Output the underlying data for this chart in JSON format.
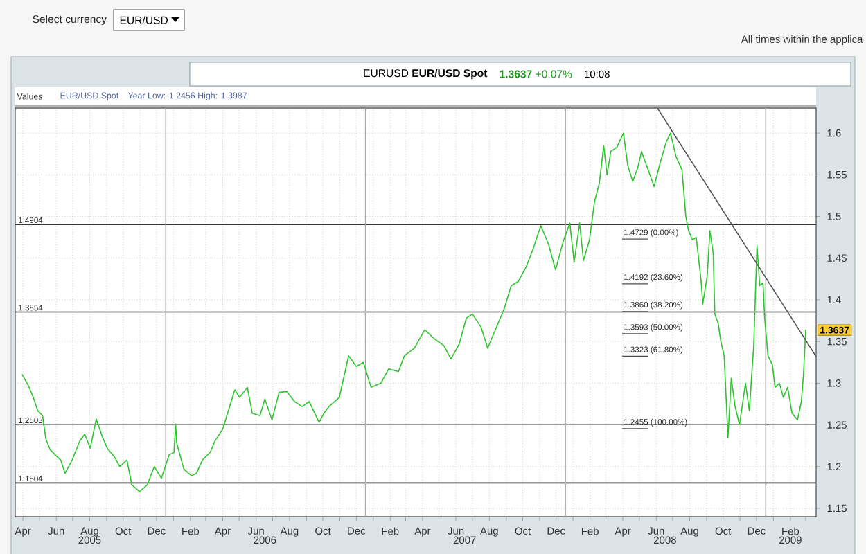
{
  "chart_data": {
    "type": "line",
    "title": "EURUSD **EUR/USD Spot**",
    "subtitle": "**1.3637** +0.07%",
    "annotations": [
      "Select currency",
      "EUR/USD",
      "All times within the applica",
      "10:08",
      "Values",
      "EUR/USD Spot",
      "Year Low: 1.2456 High: 1.3987",
      {
        "text": "1.3637",
        "y": 1.3637
      },
      "1.4729 (0.00%)",
      "1.4192 (23.60%)",
      "1.3860 (38.20%)",
      "1.3593 (50.00%)",
      "1.3323 (61.80%)",
      "1.2455 (100.00%)"
    ],
    "series": [
      {
        "color": "#2fc42f",
        "x": [
          "2005-04-14",
          "2005-04-25",
          "2005-05-04",
          "2005-05-12",
          "2005-05-21",
          "2005-05-27",
          "2005-06-04",
          "2005-06-13",
          "2005-06-23",
          "2005-07-01",
          "2005-07-14",
          "2005-07-28",
          "2005-08-06",
          "2005-08-16",
          "2005-08-27",
          "2005-09-07",
          "2005-09-16",
          "2005-09-30",
          "2005-10-09",
          "2005-10-22",
          "2005-10-31",
          "2005-11-14",
          "2005-11-28",
          "2005-12-11",
          "2005-12-24",
          "2006-01-07",
          "2006-01-16",
          "2006-01-19",
          "2006-01-21",
          "2006-02-03",
          "2006-02-17",
          "2006-02-26",
          "2006-03-09",
          "2006-03-23",
          "2006-04-01",
          "2006-04-15",
          "2006-04-24",
          "2006-05-07",
          "2006-05-16",
          "2006-05-30",
          "2006-06-08",
          "2006-06-22",
          "2006-07-01",
          "2006-07-14",
          "2006-07-27",
          "2006-08-10",
          "2006-08-24",
          "2006-09-07",
          "2006-09-20",
          "2006-10-08",
          "2006-10-17",
          "2006-10-26",
          "2006-11-14",
          "2006-12-01",
          "2006-12-15",
          "2006-12-28",
          "2007-01-11",
          "2007-01-29",
          "2007-02-12",
          "2007-03-02",
          "2007-03-13",
          "2007-03-31",
          "2007-04-19",
          "2007-05-07",
          "2007-05-24",
          "2007-06-06",
          "2007-06-21",
          "2007-07-04",
          "2007-07-15",
          "2007-07-31",
          "2007-08-12",
          "2007-08-28",
          "2007-09-11",
          "2007-09-24",
          "2007-10-07",
          "2007-10-21",
          "2007-11-03",
          "2007-11-17",
          "2007-12-01",
          "2007-12-14",
          "2007-12-28",
          "2008-01-09",
          "2008-01-17",
          "2008-01-27",
          "2008-02-03",
          "2008-02-14",
          "2008-02-23",
          "2008-03-03",
          "2008-03-11",
          "2008-03-17",
          "2008-03-24",
          "2008-04-04",
          "2008-04-16",
          "2008-04-24",
          "2008-05-03",
          "2008-05-12",
          "2008-05-19",
          "2008-05-30",
          "2008-06-11",
          "2008-06-22",
          "2008-07-03",
          "2008-07-11",
          "2008-07-21",
          "2008-08-01",
          "2008-08-08",
          "2008-08-13",
          "2008-08-20",
          "2008-08-27",
          "2008-09-05",
          "2008-09-08",
          "2008-09-16",
          "2008-09-21",
          "2008-09-27",
          "2008-09-30",
          "2008-10-06",
          "2008-10-11",
          "2008-10-17",
          "2008-10-24",
          "2008-10-30",
          "2008-11-06",
          "2008-11-14",
          "2008-11-25",
          "2008-12-02",
          "2008-12-10",
          "2008-12-16",
          "2008-12-21",
          "2008-12-27",
          "2008-12-30",
          "2009-01-05",
          "2009-01-13",
          "2009-01-18",
          "2009-01-26",
          "2009-02-02",
          "2009-02-10",
          "2009-02-18",
          "2009-02-28",
          "2009-03-07",
          "2009-03-11",
          "2009-03-15"
        ],
        "values": [
          1.31,
          1.297,
          1.283,
          1.267,
          1.261,
          1.233,
          1.22,
          1.214,
          1.208,
          1.192,
          1.208,
          1.231,
          1.239,
          1.222,
          1.257,
          1.236,
          1.222,
          1.211,
          1.2,
          1.208,
          1.178,
          1.17,
          1.178,
          1.2,
          1.186,
          1.214,
          1.217,
          1.251,
          1.228,
          1.197,
          1.189,
          1.192,
          1.208,
          1.217,
          1.231,
          1.245,
          1.264,
          1.292,
          1.283,
          1.295,
          1.264,
          1.261,
          1.281,
          1.256,
          1.289,
          1.29,
          1.278,
          1.272,
          1.278,
          1.253,
          1.264,
          1.272,
          1.283,
          1.333,
          1.32,
          1.325,
          1.295,
          1.3,
          1.317,
          1.314,
          1.333,
          1.342,
          1.364,
          1.353,
          1.345,
          1.329,
          1.347,
          1.378,
          1.383,
          1.367,
          1.342,
          1.367,
          1.389,
          1.417,
          1.422,
          1.439,
          1.461,
          1.489,
          1.467,
          1.436,
          1.47,
          1.492,
          1.445,
          1.492,
          1.447,
          1.472,
          1.517,
          1.54,
          1.585,
          1.55,
          1.578,
          1.583,
          1.6,
          1.561,
          1.542,
          1.558,
          1.578,
          1.558,
          1.536,
          1.564,
          1.589,
          1.6,
          1.572,
          1.556,
          1.5,
          1.483,
          1.472,
          1.475,
          1.422,
          1.395,
          1.428,
          1.483,
          1.456,
          1.383,
          1.372,
          1.35,
          1.333,
          1.235,
          1.306,
          1.272,
          1.25,
          1.3,
          1.267,
          1.345,
          1.465,
          1.417,
          1.42,
          1.378,
          1.333,
          1.322,
          1.295,
          1.3,
          1.283,
          1.295,
          1.264,
          1.256,
          1.278,
          1.311,
          1.364
        ]
      },
      {
        "type": "line",
        "color": "#555555",
        "x": [
          "2008-06-18",
          "2009-04-03"
        ],
        "values": [
          1.629,
          1.332
        ]
      }
    ],
    "xlim": [
      "2005-04-01",
      "2009-04-03"
    ],
    "xticks": [
      {
        "value": "2005-04-15",
        "label": "Apr"
      },
      {
        "value": "2005-05-15",
        "label": null
      },
      {
        "value": "2005-06-15",
        "label": "Jun"
      },
      {
        "value": "2005-07-15",
        "label": null
      },
      {
        "value": "2005-08-15",
        "label": "Aug"
      },
      {
        "value": "2005-09-15",
        "label": null
      },
      {
        "value": "2005-10-15",
        "label": "Oct"
      },
      {
        "value": "2005-11-15",
        "label": null
      },
      {
        "value": "2005-12-15",
        "label": "Dec"
      },
      {
        "value": "2006-01-15",
        "label": null
      },
      {
        "value": "2006-02-15",
        "label": "Feb"
      },
      {
        "value": "2006-03-15",
        "label": null
      },
      {
        "value": "2006-04-15",
        "label": "Apr"
      },
      {
        "value": "2006-05-15",
        "label": null
      },
      {
        "value": "2006-06-15",
        "label": "Jun"
      },
      {
        "value": "2006-07-15",
        "label": null
      },
      {
        "value": "2006-08-15",
        "label": "Aug"
      },
      {
        "value": "2006-09-15",
        "label": null
      },
      {
        "value": "2006-10-15",
        "label": "Oct"
      },
      {
        "value": "2006-11-15",
        "label": null
      },
      {
        "value": "2006-12-15",
        "label": "Dec"
      },
      {
        "value": "2007-01-15",
        "label": null
      },
      {
        "value": "2007-02-15",
        "label": "Feb"
      },
      {
        "value": "2007-03-15",
        "label": null
      },
      {
        "value": "2007-04-15",
        "label": "Apr"
      },
      {
        "value": "2007-05-15",
        "label": null
      },
      {
        "value": "2007-06-15",
        "label": "Jun"
      },
      {
        "value": "2007-07-15",
        "label": null
      },
      {
        "value": "2007-08-15",
        "label": "Aug"
      },
      {
        "value": "2007-09-15",
        "label": null
      },
      {
        "value": "2007-10-15",
        "label": "Oct"
      },
      {
        "value": "2007-11-15",
        "label": null
      },
      {
        "value": "2007-12-15",
        "label": "Dec"
      },
      {
        "value": "2008-01-15",
        "label": null
      },
      {
        "value": "2008-02-15",
        "label": "Feb"
      },
      {
        "value": "2008-03-15",
        "label": null
      },
      {
        "value": "2008-04-15",
        "label": "Apr"
      },
      {
        "value": "2008-05-15",
        "label": null
      },
      {
        "value": "2008-06-15",
        "label": "Jun"
      },
      {
        "value": "2008-07-15",
        "label": null
      },
      {
        "value": "2008-08-15",
        "label": "Aug"
      },
      {
        "value": "2008-09-15",
        "label": null
      },
      {
        "value": "2008-10-15",
        "label": "Oct"
      },
      {
        "value": "2008-11-15",
        "label": null
      },
      {
        "value": "2008-12-15",
        "label": "Dec"
      },
      {
        "value": "2009-01-15",
        "label": null
      },
      {
        "value": "2009-02-15",
        "label": "Feb"
      },
      {
        "value": "2009-03-15",
        "label": null
      }
    ],
    "x2lim": [
      "2005-04-01",
      "2009-04-03"
    ],
    "x2ticks": [
      {
        "value": "2005-08-15",
        "label": "2005"
      },
      {
        "value": "2006-07-01",
        "label": "2006"
      },
      {
        "value": "2007-07-01",
        "label": "2007"
      },
      {
        "value": "2008-07-01",
        "label": "2008"
      },
      {
        "value": "2009-02-15",
        "label": "2009"
      }
    ],
    "ylim": [
      1.14,
      1.63
    ],
    "yticks": [
      1.15,
      1.2,
      1.25,
      1.3,
      1.35,
      1.4,
      1.45,
      1.5,
      1.55,
      1.6
    ],
    "ref_lines": [
      {
        "axis": "y",
        "value": 1.4904,
        "label": "1.4904",
        "color": "#333333"
      },
      {
        "axis": "y",
        "value": 1.3854,
        "label": "1.3854",
        "color": "#333333"
      },
      {
        "axis": "y",
        "value": 1.2503,
        "label": "1.2503",
        "color": "#333333"
      },
      {
        "axis": "y",
        "value": 1.1804,
        "label": "1.1804",
        "color": "#333333"
      },
      {
        "axis": "x",
        "value": "2006-01-01",
        "color": "#a8a8a8"
      },
      {
        "axis": "x",
        "value": "2007-01-01",
        "color": "#a8a8a8"
      },
      {
        "axis": "x",
        "value": "2008-01-01",
        "color": "#a8a8a8"
      },
      {
        "axis": "x",
        "value": "2009-01-01",
        "color": "#a8a8a8"
      }
    ],
    "grid": true
  }
}
